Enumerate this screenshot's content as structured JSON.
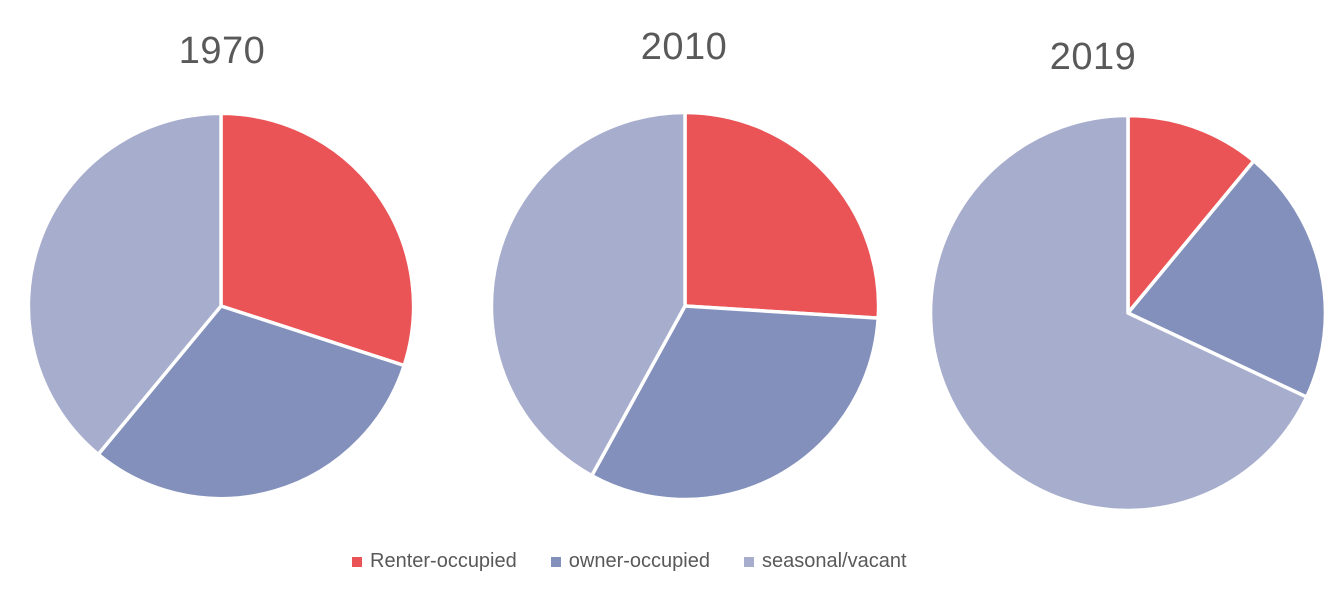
{
  "page": {
    "background_color": "#ffffff",
    "text_color": "#595959"
  },
  "charts": {
    "titles": {
      "chart1": "1970",
      "chart2": "2010",
      "chart3": "2019"
    }
  },
  "legend": {
    "position": "bottom-center",
    "items": [
      {
        "label": "Renter-occupied",
        "color": "#ea5456"
      },
      {
        "label": "owner-occupied",
        "color": "#8290bb"
      },
      {
        "label": "seasonal/vacant",
        "color": "#a7adcc"
      }
    ]
  },
  "chart_data": [
    {
      "type": "pie",
      "title": "1970",
      "categories": [
        "Renter-occupied",
        "owner-occupied",
        "seasonal/vacant"
      ],
      "values": [
        30,
        31,
        39
      ],
      "unit": "% share (estimated from slice angles)",
      "colors": [
        "#ea5456",
        "#8290bb",
        "#a7adcc"
      ],
      "start_angle_deg": 0,
      "direction": "clockwise",
      "slice_separator_color": "#ffffff",
      "legend_position": "bottom"
    },
    {
      "type": "pie",
      "title": "2010",
      "categories": [
        "Renter-occupied",
        "owner-occupied",
        "seasonal/vacant"
      ],
      "values": [
        26,
        32,
        42
      ],
      "unit": "% share (estimated from slice angles)",
      "colors": [
        "#ea5456",
        "#8290bb",
        "#a7adcc"
      ],
      "start_angle_deg": 0,
      "direction": "clockwise",
      "slice_separator_color": "#ffffff",
      "legend_position": "bottom"
    },
    {
      "type": "pie",
      "title": "2019",
      "categories": [
        "Renter-occupied",
        "owner-occupied",
        "seasonal/vacant"
      ],
      "values": [
        11,
        21,
        68
      ],
      "unit": "% share (estimated from slice angles)",
      "colors": [
        "#ea5456",
        "#8290bb",
        "#a7adcc"
      ],
      "start_angle_deg": 0,
      "direction": "clockwise",
      "slice_separator_color": "#ffffff",
      "legend_position": "bottom"
    }
  ]
}
